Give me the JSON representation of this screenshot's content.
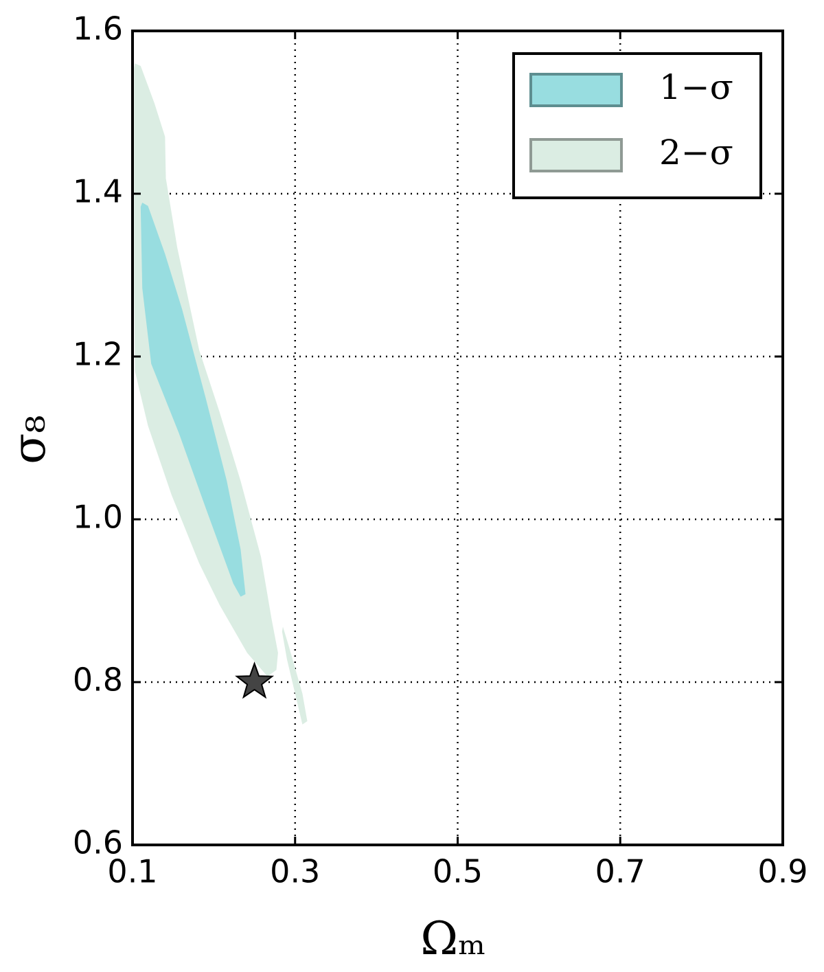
{
  "chart_data": {
    "type": "contour",
    "xlabel": "Ωₘ",
    "ylabel": "σ₈",
    "xlim": [
      0.1,
      0.9
    ],
    "ylim": [
      0.6,
      1.6
    ],
    "xticks": [
      0.1,
      0.3,
      0.5,
      0.7,
      0.9
    ],
    "yticks": [
      0.6,
      0.8,
      {
        "value": 1.0,
        "label": "1.0"
      },
      1.2,
      1.4,
      1.6
    ],
    "grid": true,
    "legend": "upper right",
    "series": [
      {
        "name": "2−σ",
        "color": "#dbede3",
        "edgecolor": "#8f9a94",
        "regions": [
          {
            "x": [
              0.103,
              0.11,
              0.127,
              0.14,
              0.141,
              0.155,
              0.182,
              0.207,
              0.233,
              0.258,
              0.271,
              0.279,
              0.277,
              0.266,
              0.241,
              0.207,
              0.182,
              0.148,
              0.119,
              0.103,
              0.102,
              0.102
            ],
            "y": [
              1.56,
              1.557,
              1.511,
              1.47,
              1.419,
              1.334,
              1.208,
              1.132,
              1.047,
              0.954,
              0.878,
              0.836,
              0.815,
              0.807,
              0.836,
              0.895,
              0.946,
              1.03,
              1.115,
              1.182,
              1.284,
              1.554
            ]
          },
          {
            "x": [
              0.285,
              0.292,
              0.309,
              0.315,
              0.309,
              0.3,
              0.29,
              0.284
            ],
            "y": [
              0.868,
              0.845,
              0.786,
              0.752,
              0.748,
              0.786,
              0.828,
              0.862
            ]
          }
        ]
      },
      {
        "name": "1−σ",
        "color": "#98dde0",
        "edgecolor": "#5e8e90",
        "regions": [
          {
            "x": [
              0.112,
              0.119,
              0.14,
              0.161,
              0.19,
              0.216,
              0.233,
              0.239,
              0.233,
              0.224,
              0.19,
              0.157,
              0.123,
              0.112,
              0.11
            ],
            "y": [
              1.389,
              1.385,
              1.326,
              1.258,
              1.149,
              1.047,
              0.963,
              0.908,
              0.905,
              0.921,
              1.014,
              1.106,
              1.191,
              1.284,
              1.384
            ]
          }
        ]
      }
    ],
    "marker": {
      "x": 0.25,
      "y": 0.8,
      "color": "#444444"
    }
  }
}
